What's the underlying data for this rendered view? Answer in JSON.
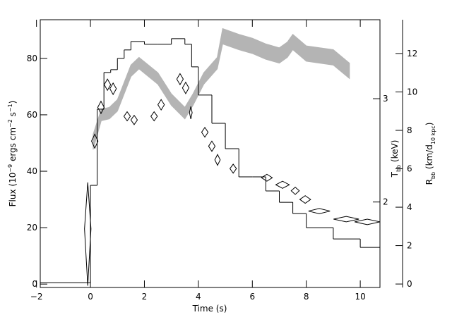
{
  "chart_data": {
    "type": "histogram",
    "xlabel": "Time (s)",
    "ylabel": [
      "Flux (10",
      "−9",
      " ergs cm",
      "−2",
      " s",
      "−1",
      ")"
    ],
    "y2label": [
      "T",
      "bb",
      " (keV)"
    ],
    "y3label": [
      "R",
      "bb",
      " (km/d",
      "10 kpc",
      ")"
    ],
    "xlim": [
      -1.86,
      10.73
    ],
    "xticks": [
      {
        "value": -2,
        "label": "−2"
      },
      0,
      2,
      4,
      6,
      8,
      10
    ],
    "ylim": [
      -1.2,
      93.7
    ],
    "yticks": [
      0,
      20,
      40,
      60,
      80
    ],
    "y2lim": [
      1.43,
      4.09
    ],
    "y2log": true,
    "y2ticks": [
      2,
      3
    ],
    "y3lim": [
      -0.18,
      13.76
    ],
    "y3ticks": [
      0,
      2,
      4,
      6,
      8,
      10,
      12
    ],
    "histogram": {
      "color": "#000000",
      "bins": [
        -2,
        0,
        0.25,
        0.5,
        0.75,
        1,
        1.25,
        1.5,
        2,
        2.5,
        3,
        3.5,
        3.75,
        4,
        4.5,
        5,
        5.5,
        6,
        6.5,
        7,
        7.5,
        8,
        9,
        10,
        11
      ],
      "values": [
        0.5,
        35,
        62,
        75,
        76,
        80,
        83,
        86,
        85,
        85,
        87,
        85,
        77,
        67,
        57,
        48,
        38,
        38,
        33,
        29,
        25,
        20,
        16,
        13
      ]
    },
    "band": {
      "color": "#b4b4b4",
      "x": [
        0.1,
        0.4,
        0.7,
        1.0,
        1.5,
        1.8,
        2.5,
        3.0,
        3.5,
        3.8,
        4.2,
        4.7,
        4.9,
        5.5,
        6.0,
        6.5,
        7.0,
        7.3,
        7.5,
        8.0,
        9.0,
        9.6
      ],
      "lower": [
        7.0,
        8.5,
        8.6,
        9.0,
        10.8,
        11.2,
        10.4,
        9.3,
        8.6,
        9.3,
        10.4,
        11.2,
        12.5,
        12.2,
        12.0,
        11.7,
        11.5,
        11.8,
        12.2,
        11.6,
        11.4,
        10.7
      ],
      "upper": [
        7.8,
        9.1,
        9.2,
        9.6,
        11.4,
        11.8,
        11.0,
        9.9,
        9.2,
        9.9,
        11.0,
        11.8,
        13.3,
        13.0,
        12.8,
        12.5,
        12.3,
        12.6,
        13.0,
        12.4,
        12.2,
        11.5
      ]
    },
    "points": {
      "color": "#000000",
      "x": [
        -0.1,
        0.16,
        0.39,
        0.63,
        0.84,
        1.36,
        1.62,
        2.36,
        2.62,
        3.32,
        3.53,
        3.72,
        4.24,
        4.5,
        4.71,
        5.29,
        6.54,
        7.12,
        7.59,
        7.96,
        8.48,
        9.48,
        10.26
      ],
      "values": [
        1.8,
        2.54,
        2.9,
        3.17,
        3.12,
        2.8,
        2.76,
        2.8,
        2.93,
        3.24,
        3.13,
        2.84,
        2.63,
        2.49,
        2.36,
        2.28,
        2.2,
        2.14,
        2.09,
        2.02,
        1.93,
        1.87,
        1.85
      ],
      "xerr": [
        0.12,
        0.12,
        0.12,
        0.12,
        0.12,
        0.12,
        0.12,
        0.12,
        0.12,
        0.12,
        0.12,
        0.05,
        0.12,
        0.12,
        0.1,
        0.12,
        0.2,
        0.25,
        0.15,
        0.2,
        0.4,
        0.47,
        0.47
      ],
      "yerr": [
        0.36,
        0.07,
        0.07,
        0.07,
        0.07,
        0.05,
        0.05,
        0.05,
        0.06,
        0.07,
        0.07,
        0.07,
        0.05,
        0.05,
        0.05,
        0.04,
        0.03,
        0.03,
        0.03,
        0.03,
        0.02,
        0.02,
        0.02
      ]
    }
  }
}
